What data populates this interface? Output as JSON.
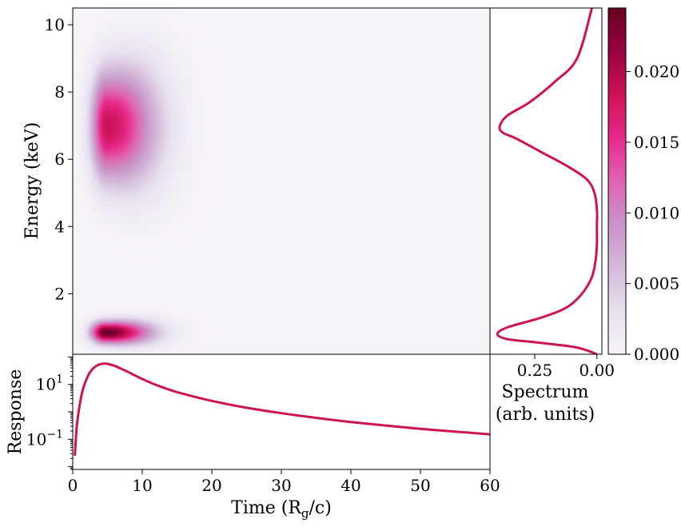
{
  "chart_data": [
    {
      "type": "heatmap",
      "title": "",
      "xlabel": "",
      "ylabel": "Energy (keV)",
      "xlim": [
        0,
        60
      ],
      "ylim": [
        0.2,
        10.5
      ],
      "yticks": [
        2,
        4,
        6,
        8,
        10
      ],
      "yticklabels": [
        "2",
        "4",
        "6",
        "8",
        "10"
      ],
      "colormap": "PuRd",
      "color_stops": [
        "#f7f4f9",
        "#e7e1ef",
        "#d4b9da",
        "#c994c7",
        "#df65b0",
        "#e7298a",
        "#ce1256",
        "#980043",
        "#67001f"
      ],
      "blobs": [
        {
          "t": 4.7,
          "e": 0.85,
          "amplitude": 0.0245,
          "t_width": 2.0,
          "e_width": 0.22
        },
        {
          "t": 4.9,
          "e": 7.0,
          "amplitude": 0.0185,
          "t_width": 2.2,
          "e_width": 1.1
        }
      ]
    },
    {
      "type": "line",
      "title": "",
      "xlabel": "Spectrum\n(arb. units)",
      "xlabel_lines": [
        "Spectrum",
        "(arb. units)"
      ],
      "ylabel": "",
      "xlim": [
        0.43,
        -0.02
      ],
      "ylim": [
        0.2,
        10.5
      ],
      "xticks": [
        0.25,
        0.0
      ],
      "xticklabels": [
        "0.25",
        "0.00"
      ],
      "series": [
        {
          "color": "#ce1256",
          "x": [
            0.0,
            0.08,
            0.24,
            0.36,
            0.4,
            0.36,
            0.22,
            0.12,
            0.06,
            0.02,
            0.005,
            0.0,
            0.0,
            0.0,
            0.01,
            0.04,
            0.12,
            0.22,
            0.32,
            0.38,
            0.39,
            0.36,
            0.27,
            0.17,
            0.08,
            0.02
          ],
          "y": [
            0.2,
            0.4,
            0.55,
            0.65,
            0.8,
            1.0,
            1.3,
            1.6,
            2.0,
            2.5,
            3.0,
            3.5,
            4.0,
            4.5,
            5.0,
            5.4,
            5.8,
            6.2,
            6.6,
            6.8,
            7.0,
            7.3,
            7.7,
            8.3,
            9.0,
            10.5
          ]
        }
      ]
    },
    {
      "type": "line",
      "title": "",
      "xlabel": "Time (R_g/c)",
      "ylabel": "Response",
      "xlim": [
        0,
        60
      ],
      "ylim_log10": [
        -2.1,
        2.1
      ],
      "yscale": "log",
      "xticks": [
        0,
        10,
        20,
        30,
        40,
        50,
        60
      ],
      "xticklabels": [
        "0",
        "10",
        "20",
        "30",
        "40",
        "50",
        "60"
      ],
      "yticks_log10": [
        1,
        -1
      ],
      "series": [
        {
          "color": "#ce1256",
          "x": [
            0.3,
            0.6,
            1,
            1.5,
            2,
            2.5,
            3,
            3.5,
            4,
            4.5,
            5,
            6,
            7,
            8,
            10,
            12,
            15,
            20,
            25,
            30,
            35,
            40,
            45,
            50,
            55,
            60
          ],
          "log10_y": [
            -1.6,
            -0.5,
            0.25,
            0.85,
            1.2,
            1.45,
            1.6,
            1.69,
            1.74,
            1.76,
            1.75,
            1.68,
            1.57,
            1.45,
            1.2,
            0.98,
            0.72,
            0.4,
            0.15,
            -0.05,
            -0.22,
            -0.37,
            -0.5,
            -0.62,
            -0.72,
            -0.82
          ]
        }
      ]
    },
    {
      "type": "colorbar",
      "title": "",
      "range": [
        0,
        0.0245
      ],
      "ticks": [
        0,
        0.005,
        0.01,
        0.015,
        0.02
      ],
      "ticklabels": [
        "0.000",
        "0.005",
        "0.010",
        "0.015",
        "0.020"
      ]
    }
  ]
}
